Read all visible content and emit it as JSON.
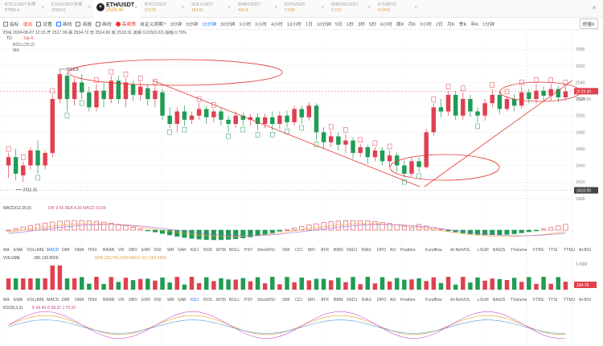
{
  "tickers": [
    {
      "symbol": "BTC/USDT永续",
      "price": "57866.4",
      "active": false,
      "up": false
    },
    {
      "symbol": "ETH/USDT永续",
      "price": "2529.61",
      "active": false,
      "up": false
    },
    {
      "symbol": "ETH/USDT",
      "price": "2529.40",
      "active": true,
      "up": true
    },
    {
      "symbol": "BTC/USDT",
      "price": "57126",
      "active": false,
      "up": true
    },
    {
      "symbol": "SOL/USDT",
      "price": "154.61",
      "active": false,
      "up": true
    },
    {
      "symbol": "BNB/USDT",
      "price": "496.8",
      "active": false,
      "up": true
    },
    {
      "symbol": "ICP/USDT",
      "price": "7.689",
      "active": false,
      "up": true
    },
    {
      "symbol": "RINGS/USDT",
      "price": "0.101",
      "active": false,
      "up": true
    },
    {
      "symbol": "ETH/BTC",
      "price": "0.0443",
      "active": false,
      "up": true
    }
  ],
  "toolbar": {
    "items": [
      {
        "label": "指标",
        "icon": "indicator-icon",
        "state": "normal"
      },
      {
        "label": "退出",
        "icon": "",
        "state": "red"
      },
      {
        "label": "设置",
        "icon": "gear-icon",
        "state": "normal"
      },
      {
        "label": "画线",
        "icon": "draw-icon",
        "state": "blue"
      },
      {
        "label": "商报",
        "icon": "report-icon",
        "state": "normal"
      },
      {
        "label": "画线",
        "icon": "draw-icon",
        "state": "normal"
      },
      {
        "label": "高频策",
        "icon": "strategy-icon",
        "state": "red"
      }
    ],
    "period_menu": "自定义周期",
    "periods": [
      "3分钟",
      "5分钟",
      "15分钟",
      "30分钟",
      "1小时",
      "2小时",
      "4小时",
      "12小时",
      "1日",
      "10分钟",
      "5日",
      "1秒",
      "3秒",
      "5秒",
      "6小时",
      "周K",
      "月K",
      "3小时",
      "2日",
      "月K",
      "季K",
      "年K",
      "1分钟"
    ],
    "active_period": "15分钟",
    "right_button": "燃量K"
  },
  "price_panel": {
    "info_line": "时间 2024-08-07 12:15  开 2517.99  高 2534.72  低 2514.90  收 2518.31  涨跌 0.015(0.02)  振幅 0.79%",
    "td_label": "TD",
    "td_extra": "Up 4",
    "boll_label": "BOLL(20,2)",
    "ma_label": "MA",
    "high_marker": "2555.8",
    "low_marker": "2411.31",
    "y_ticks": [
      2580,
      2560,
      2540,
      2520,
      2500,
      2480,
      2460,
      2440,
      2420,
      2400
    ],
    "current_price": "2529.40",
    "current_alt": "2520.00",
    "last_level": "2410.00"
  },
  "chart_data": {
    "type": "candlestick",
    "ylim": [
      2395,
      2585
    ],
    "candles": [
      [
        2440,
        2450,
        2425,
        2455,
        "up"
      ],
      [
        2450,
        2430,
        2422,
        2460,
        "down"
      ],
      [
        2428,
        2440,
        2420,
        2445,
        "up"
      ],
      [
        2440,
        2458,
        2435,
        2462,
        "up"
      ],
      [
        2458,
        2440,
        2430,
        2470,
        "down"
      ],
      [
        2440,
        2455,
        2435,
        2458,
        "up"
      ],
      [
        2455,
        2520,
        2450,
        2525,
        "up"
      ],
      [
        2520,
        2550,
        2515,
        2556,
        "up"
      ],
      [
        2548,
        2520,
        2505,
        2552,
        "down"
      ],
      [
        2520,
        2540,
        2512,
        2545,
        "up"
      ],
      [
        2540,
        2528,
        2520,
        2550,
        "down"
      ],
      [
        2528,
        2510,
        2505,
        2535,
        "down"
      ],
      [
        2510,
        2530,
        2505,
        2538,
        "up"
      ],
      [
        2530,
        2520,
        2510,
        2540,
        "down"
      ],
      [
        2520,
        2542,
        2515,
        2548,
        "up"
      ],
      [
        2542,
        2520,
        2515,
        2548,
        "down"
      ],
      [
        2520,
        2540,
        2510,
        2545,
        "up"
      ],
      [
        2538,
        2525,
        2518,
        2542,
        "down"
      ],
      [
        2525,
        2535,
        2518,
        2540,
        "up"
      ],
      [
        2533,
        2520,
        2512,
        2538,
        "down"
      ],
      [
        2520,
        2530,
        2510,
        2536,
        "up"
      ],
      [
        2528,
        2500,
        2495,
        2532,
        "down"
      ],
      [
        2500,
        2490,
        2485,
        2510,
        "down"
      ],
      [
        2490,
        2505,
        2480,
        2510,
        "up"
      ],
      [
        2505,
        2495,
        2488,
        2512,
        "down"
      ],
      [
        2495,
        2500,
        2490,
        2505,
        "up"
      ],
      [
        2500,
        2508,
        2495,
        2515,
        "up"
      ],
      [
        2508,
        2498,
        2490,
        2512,
        "down"
      ],
      [
        2498,
        2505,
        2492,
        2508,
        "up"
      ],
      [
        2505,
        2495,
        2488,
        2510,
        "down"
      ],
      [
        2495,
        2490,
        2480,
        2500,
        "down"
      ],
      [
        2490,
        2500,
        2485,
        2505,
        "up"
      ],
      [
        2500,
        2495,
        2488,
        2504,
        "down"
      ],
      [
        2495,
        2498,
        2488,
        2502,
        "up"
      ],
      [
        2498,
        2490,
        2482,
        2503,
        "down"
      ],
      [
        2490,
        2498,
        2485,
        2502,
        "up"
      ],
      [
        2498,
        2490,
        2482,
        2505,
        "down"
      ],
      [
        2490,
        2500,
        2484,
        2505,
        "up"
      ],
      [
        2500,
        2492,
        2486,
        2506,
        "down"
      ],
      [
        2492,
        2508,
        2488,
        2512,
        "up"
      ],
      [
        2508,
        2498,
        2490,
        2512,
        "down"
      ],
      [
        2498,
        2512,
        2494,
        2516,
        "up"
      ],
      [
        2512,
        2480,
        2470,
        2515,
        "down"
      ],
      [
        2480,
        2468,
        2460,
        2486,
        "down"
      ],
      [
        2468,
        2475,
        2462,
        2482,
        "up"
      ],
      [
        2475,
        2465,
        2458,
        2480,
        "down"
      ],
      [
        2465,
        2470,
        2455,
        2478,
        "up"
      ],
      [
        2470,
        2455,
        2448,
        2474,
        "down"
      ],
      [
        2455,
        2462,
        2450,
        2466,
        "up"
      ],
      [
        2462,
        2450,
        2442,
        2465,
        "down"
      ],
      [
        2450,
        2458,
        2445,
        2462,
        "up"
      ],
      [
        2458,
        2445,
        2440,
        2462,
        "down"
      ],
      [
        2445,
        2452,
        2438,
        2458,
        "up"
      ],
      [
        2452,
        2440,
        2432,
        2456,
        "down"
      ],
      [
        2440,
        2430,
        2425,
        2446,
        "down"
      ],
      [
        2430,
        2445,
        2426,
        2450,
        "up"
      ],
      [
        2445,
        2438,
        2432,
        2450,
        "down"
      ],
      [
        2438,
        2480,
        2436,
        2484,
        "up"
      ],
      [
        2480,
        2510,
        2476,
        2515,
        "up"
      ],
      [
        2510,
        2505,
        2498,
        2520,
        "down"
      ],
      [
        2505,
        2525,
        2500,
        2530,
        "up"
      ],
      [
        2525,
        2500,
        2495,
        2530,
        "down"
      ],
      [
        2500,
        2520,
        2495,
        2528,
        "up"
      ],
      [
        2520,
        2505,
        2498,
        2525,
        "down"
      ],
      [
        2505,
        2500,
        2492,
        2510,
        "down"
      ],
      [
        2500,
        2515,
        2494,
        2520,
        "up"
      ],
      [
        2515,
        2525,
        2510,
        2532,
        "up"
      ],
      [
        2525,
        2508,
        2502,
        2530,
        "down"
      ],
      [
        2508,
        2520,
        2505,
        2524,
        "up"
      ],
      [
        2520,
        2512,
        2505,
        2526,
        "down"
      ],
      [
        2512,
        2528,
        2508,
        2535,
        "up"
      ],
      [
        2528,
        2520,
        2515,
        2532,
        "down"
      ],
      [
        2520,
        2530,
        2515,
        2538,
        "up"
      ],
      [
        2530,
        2524,
        2518,
        2535,
        "down"
      ],
      [
        2524,
        2532,
        2518,
        2538,
        "up"
      ],
      [
        2532,
        2522,
        2516,
        2536,
        "down"
      ],
      [
        2522,
        2529,
        2518,
        2535,
        "up"
      ]
    ],
    "macd_label": "MACD(12,26,9)",
    "macd_values": "DIF 9.43  DEA 4.39  MACD 10.09",
    "volume_label": "VOLUME",
    "volume_values": "380,138.8000",
    "volume_ma": "MA5 233,755.3200  MA10 317,152.9300",
    "volume_tick": "1.00M",
    "volume_current": "194.78",
    "kdj_label": "KDJ(9,3,3)",
    "kdj_values": "K 69.40  D 59.97  J 70.33"
  },
  "indicator_tabs": [
    "MA",
    "EMA",
    "VOLUME",
    "MACD",
    "DMI",
    "DMA",
    "TRIX",
    "BRAR",
    "VR",
    "OBV",
    "EMV",
    "RSI",
    "WR",
    "SAR",
    "KDJ",
    "ROC",
    "MTM",
    "BOLL",
    "PSY",
    "StochRSI",
    "SMI",
    "CCI",
    "MFI",
    "ATR",
    "BBW",
    "SKDJ",
    "BIAS",
    "DPO",
    "AO",
    "Position",
    "Fundflow",
    "AI-NetVOL",
    "LSUR",
    "BASIS",
    "TVolume",
    "FTBS",
    "TTSI",
    "TTMU",
    "AI-BSI"
  ],
  "indicator_tabs_active": [
    "MACD"
  ],
  "indicator_tabs_active2": [
    "KDJ"
  ],
  "colors": {
    "up": "#e0404f",
    "down": "#1f9c55",
    "accent": "#1677ff",
    "annotation": "#e53935",
    "price_tag": "#e0404f"
  }
}
